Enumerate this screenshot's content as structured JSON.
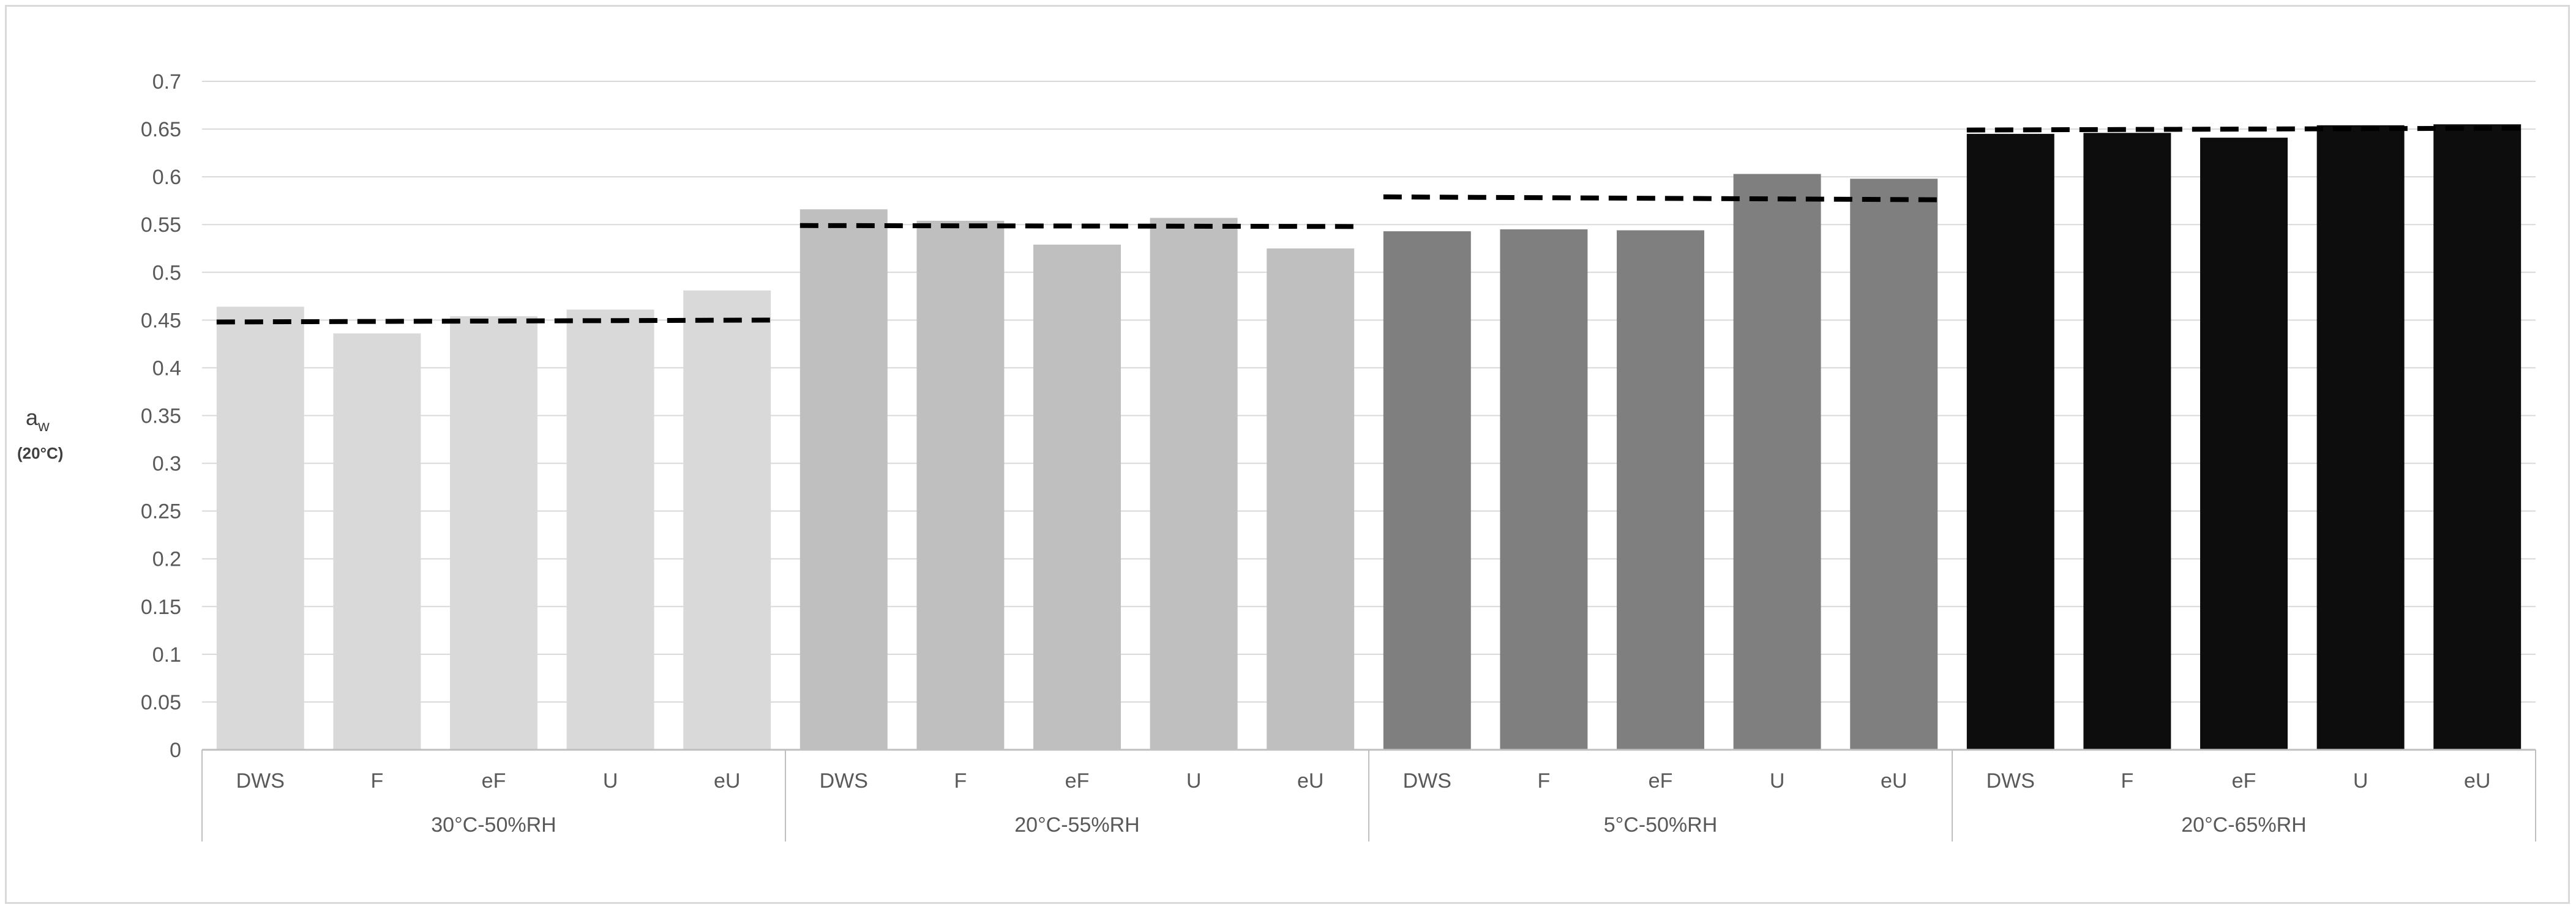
{
  "chart_data": {
    "type": "bar",
    "title": "",
    "ylabel": "a",
    "ylabel_subscript": "w",
    "ylabel_unit": "(20°C)",
    "ylim": [
      0,
      0.7
    ],
    "y_ticks": [
      "0",
      "0.05",
      "0.1",
      "0.15",
      "0.2",
      "0.25",
      "0.3",
      "0.35",
      "0.4",
      "0.45",
      "0.5",
      "0.55",
      "0.6",
      "0.65",
      "0.7"
    ],
    "grid": true,
    "legend": "none",
    "groups": [
      {
        "label": "30°C-50%RH",
        "color": "#d9d9d9",
        "categories": [
          "DWS",
          "F",
          "eF",
          "U",
          "eU"
        ],
        "values": [
          0.464,
          0.436,
          0.454,
          0.461,
          0.481
        ],
        "reference_line": [
          0.448,
          0.45
        ]
      },
      {
        "label": "20°C-55%RH",
        "color": "#bfbfbf",
        "categories": [
          "DWS",
          "F",
          "eF",
          "U",
          "eU"
        ],
        "values": [
          0.566,
          0.554,
          0.529,
          0.557,
          0.525
        ],
        "reference_line": [
          0.549,
          0.548
        ]
      },
      {
        "label": "5°C-50%RH",
        "color": "#7f7f7f",
        "categories": [
          "DWS",
          "F",
          "eF",
          "U",
          "eU"
        ],
        "values": [
          0.543,
          0.545,
          0.544,
          0.603,
          0.598
        ],
        "reference_line": [
          0.579,
          0.576
        ]
      },
      {
        "label": "20°C-65%RH",
        "color": "#0d0d0d",
        "categories": [
          "DWS",
          "F",
          "eF",
          "U",
          "eU"
        ],
        "values": [
          0.645,
          0.646,
          0.641,
          0.654,
          0.655
        ],
        "reference_line": [
          0.649,
          0.651
        ]
      }
    ],
    "colors": {
      "grid": "#d9d9d9",
      "axis": "#bfbfbf",
      "reference_line": "#000000"
    }
  }
}
